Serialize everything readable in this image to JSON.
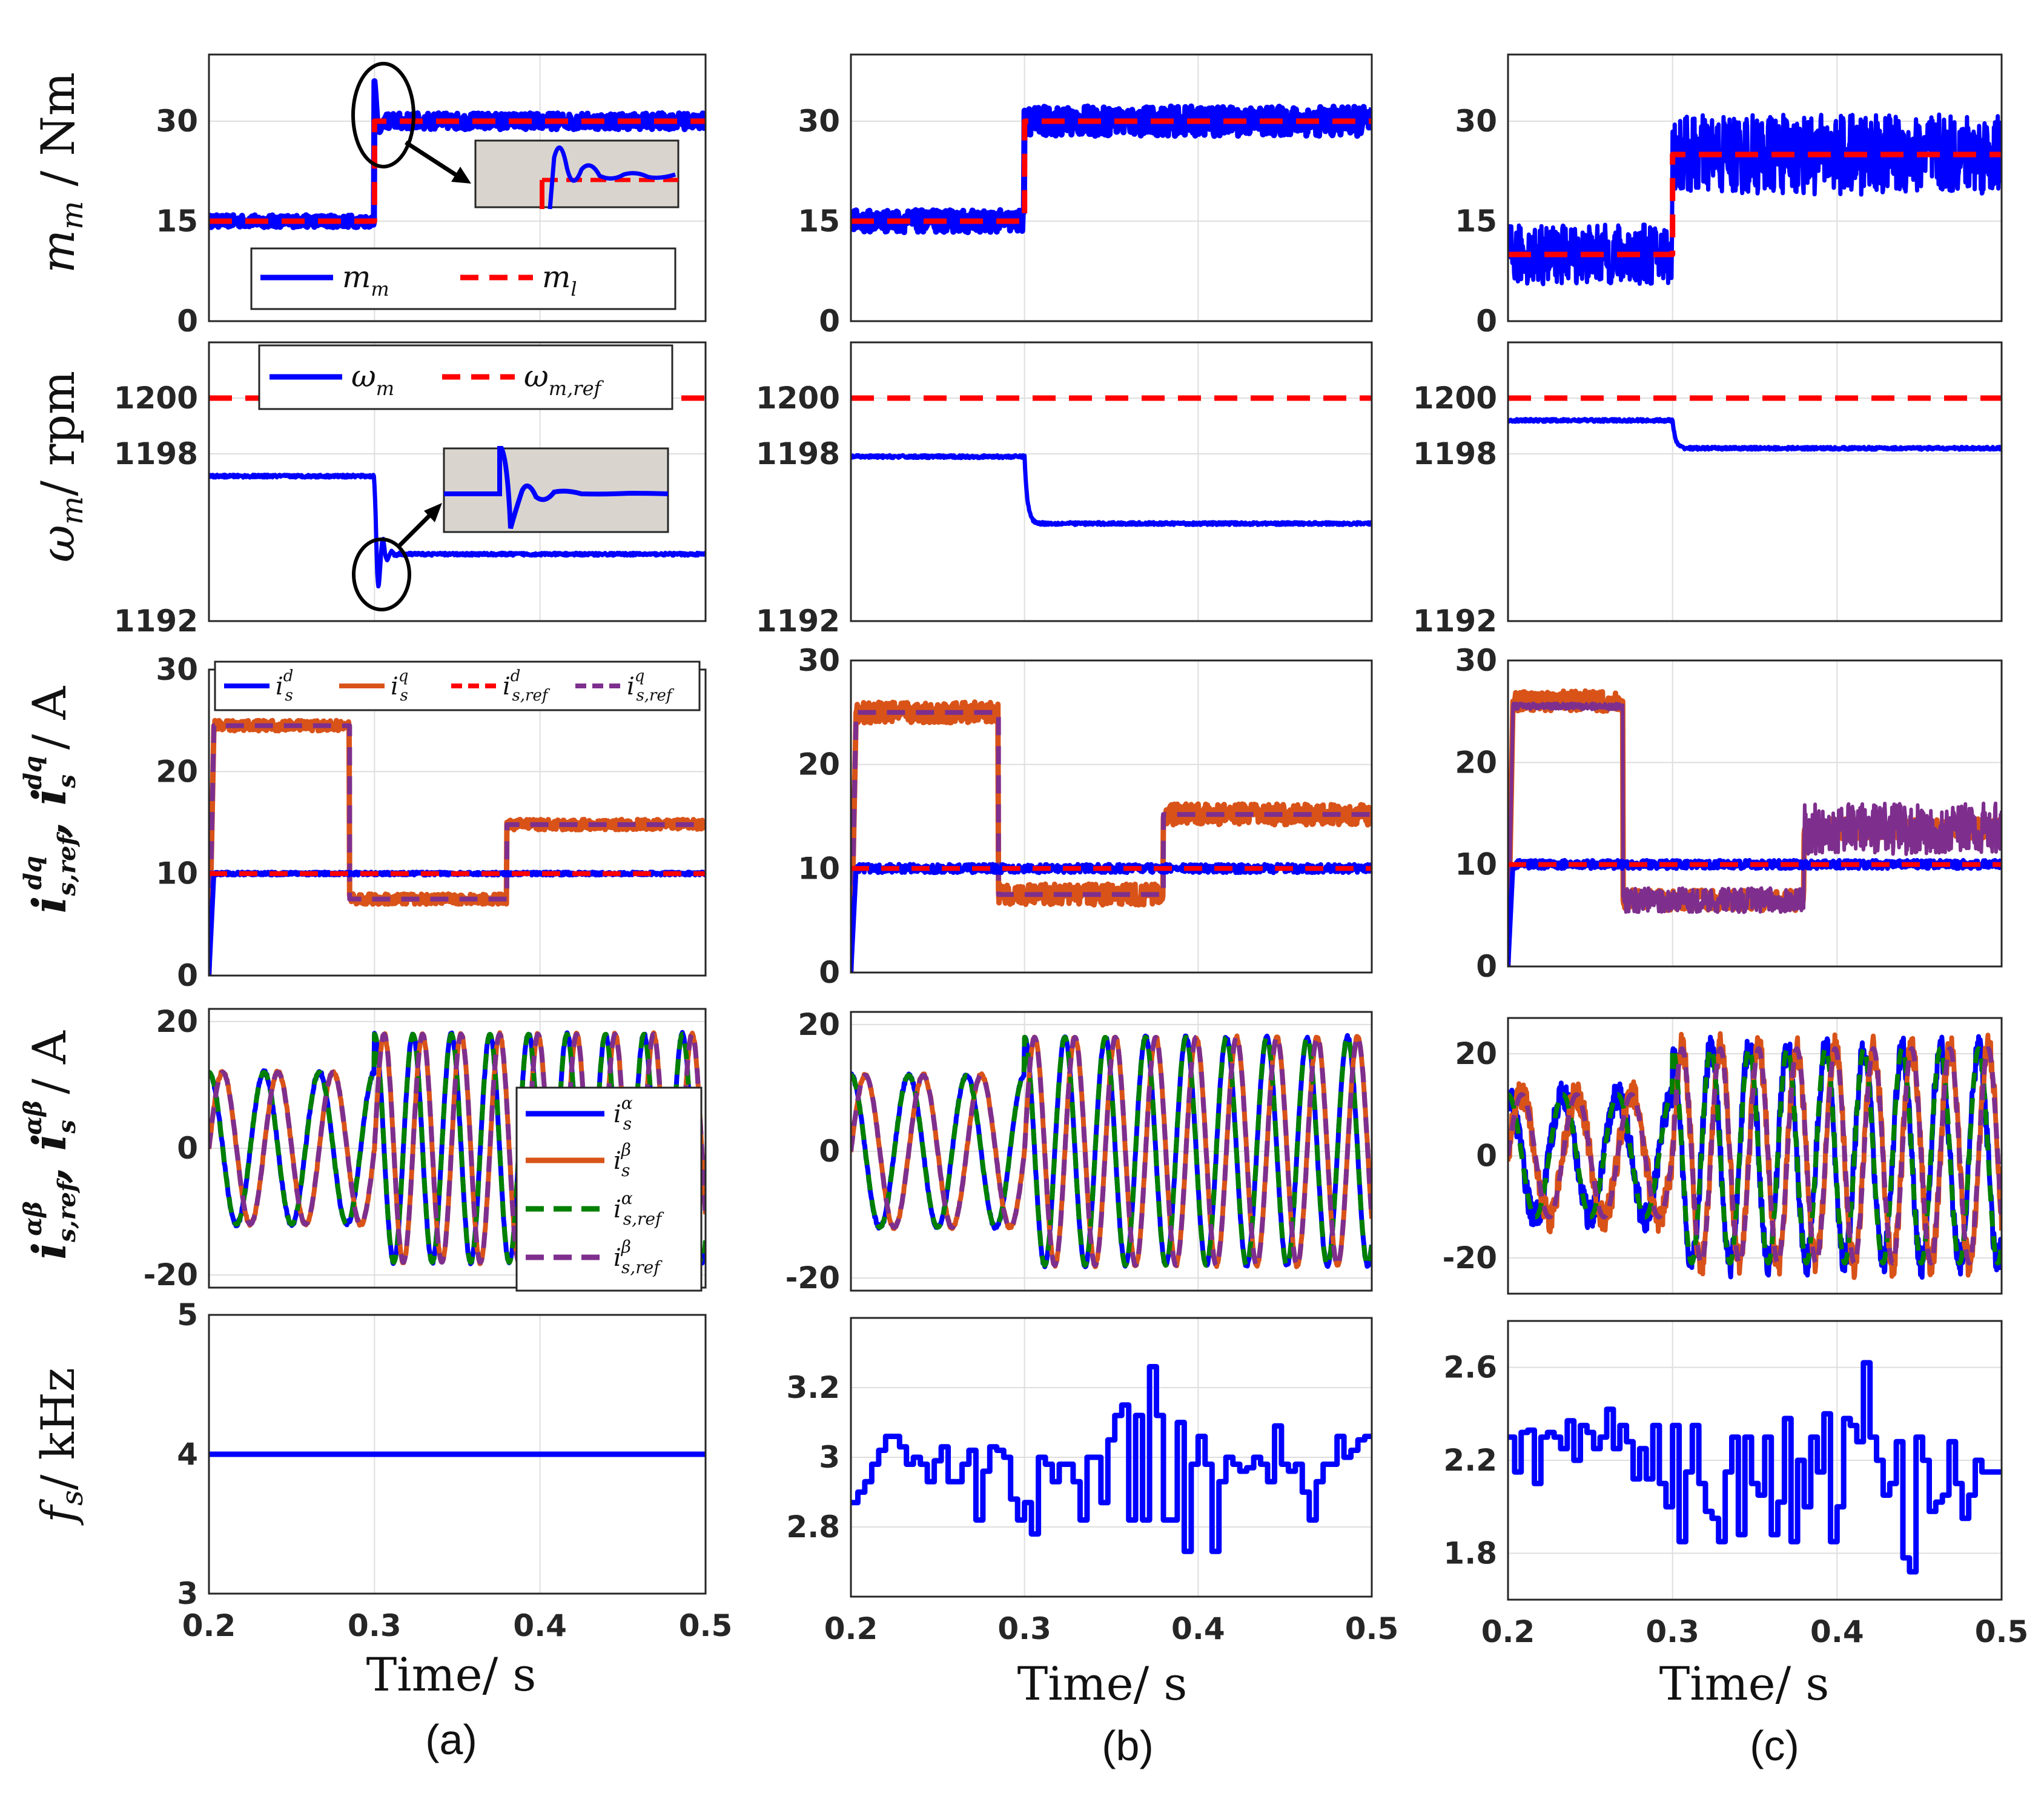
{
  "colors": {
    "blue": "#0000ff",
    "orange": "#d95319",
    "red": "#ff0000",
    "green": "#008000",
    "purple": "#7e2f8e",
    "inset": "#d9d5ce"
  },
  "row_labels": {
    "torque": "m_m / Nm",
    "speed": "ω_m / rpm",
    "idq": "i^dq_s,ref , i^dq_s / A",
    "iab": "i^αβ_s,ref , i^αβ_s / A",
    "freq": "f_s / kHz"
  },
  "x_axis": {
    "label": "Time/ s",
    "ticks": [
      "0.2",
      "0.3",
      "0.4",
      "0.5"
    ],
    "range": [
      0.2,
      0.5
    ]
  },
  "panel_labels": [
    "(a)",
    "(b)",
    "(c)"
  ],
  "legends": {
    "torque": [
      "m_m",
      "m_l"
    ],
    "speed": [
      "ω_m",
      "ω_m,ref"
    ],
    "idq": [
      "i^d_s",
      "i^q_s",
      "i^d_s,ref",
      "i^q_s,ref"
    ],
    "iab": [
      "i^α_s",
      "i^β_s",
      "i^α_s,ref",
      "i^β_s,ref"
    ]
  },
  "chart_data": [
    {
      "type": "line",
      "column": "a",
      "row": "torque",
      "ylim": [
        0,
        40
      ],
      "yticks": [
        "0",
        "15",
        "30"
      ],
      "series": [
        {
          "name": "m_m",
          "step_time": 0.3,
          "before": 15,
          "after": 30,
          "band": 1.2
        },
        {
          "name": "m_l",
          "step_time": 0.3,
          "before": 15,
          "after": 30
        }
      ]
    },
    {
      "type": "line",
      "column": "b",
      "row": "torque",
      "ylim": [
        0,
        40
      ],
      "yticks": [
        "0",
        "15",
        "30"
      ],
      "series": [
        {
          "name": "m_m",
          "step_time": 0.3,
          "before": 15,
          "after": 30,
          "band": 2.2
        },
        {
          "name": "m_l",
          "step_time": 0.3,
          "before": 15,
          "after": 30
        }
      ]
    },
    {
      "type": "line",
      "column": "c",
      "row": "torque",
      "ylim": [
        0,
        40
      ],
      "yticks": [
        "0",
        "15",
        "30"
      ],
      "series": [
        {
          "name": "m_m",
          "step_time": 0.3,
          "before": 10,
          "after": 25,
          "band": 6
        },
        {
          "name": "m_l",
          "step_time": 0.3,
          "before": 10,
          "after": 25
        }
      ]
    },
    {
      "type": "line",
      "column": "a",
      "row": "speed",
      "ylim": [
        1192,
        1202
      ],
      "yticks": [
        "1192",
        "1198",
        "1200"
      ],
      "series": [
        {
          "name": "ω_m",
          "step_time": 0.3,
          "before": 1197.2,
          "after": 1194.4
        },
        {
          "name": "ω_m,ref",
          "value": 1200
        }
      ]
    },
    {
      "type": "line",
      "column": "b",
      "row": "speed",
      "ylim": [
        1192,
        1202
      ],
      "yticks": [
        "1192",
        "1198",
        "1200"
      ],
      "series": [
        {
          "name": "ω_m",
          "step_time": 0.3,
          "before": 1197.9,
          "after": 1195.5
        },
        {
          "name": "ω_m,ref",
          "value": 1200
        }
      ]
    },
    {
      "type": "line",
      "column": "c",
      "row": "speed",
      "ylim": [
        1192,
        1202
      ],
      "yticks": [
        "1192",
        "1198",
        "1200"
      ],
      "series": [
        {
          "name": "ω_m",
          "step_time": 0.3,
          "before": 1199.2,
          "after": 1198.2
        },
        {
          "name": "ω_m,ref",
          "value": 1200
        }
      ]
    },
    {
      "type": "line",
      "column": "a",
      "row": "idq",
      "ylim": [
        0,
        30
      ],
      "yticks": [
        "0",
        "10",
        "20",
        "30"
      ],
      "series": [
        {
          "name": "i^d_s",
          "value": 10
        },
        {
          "name": "i^q_s",
          "steps": [
            [
              0.2,
              24.5
            ],
            [
              0.285,
              7.5
            ],
            [
              0.38,
              14.8
            ]
          ]
        },
        {
          "name": "i^d_s,ref",
          "value": 10
        },
        {
          "name": "i^q_s,ref",
          "steps": [
            [
              0.2,
              24.5
            ],
            [
              0.285,
              7.5
            ],
            [
              0.38,
              14.8
            ]
          ]
        }
      ]
    },
    {
      "type": "line",
      "column": "b",
      "row": "idq",
      "ylim": [
        0,
        30
      ],
      "yticks": [
        "0",
        "10",
        "20",
        "30"
      ],
      "series": [
        {
          "name": "i^d_s",
          "value": 10
        },
        {
          "name": "i^q_s",
          "steps": [
            [
              0.2,
              25
            ],
            [
              0.285,
              7.5
            ],
            [
              0.38,
              15.2
            ]
          ]
        },
        {
          "name": "i^d_s,ref",
          "value": 10
        },
        {
          "name": "i^q_s,ref",
          "steps": [
            [
              0.2,
              25
            ],
            [
              0.285,
              7.5
            ],
            [
              0.38,
              15.2
            ]
          ]
        }
      ]
    },
    {
      "type": "line",
      "column": "c",
      "row": "idq",
      "ylim": [
        0,
        30
      ],
      "yticks": [
        "0",
        "10",
        "20",
        "30"
      ],
      "series": [
        {
          "name": "i^d_s",
          "value": 10
        },
        {
          "name": "i^q_s",
          "steps": [
            [
              0.2,
              26
            ],
            [
              0.27,
              6.5
            ],
            [
              0.38,
              13.5
            ]
          ]
        },
        {
          "name": "i^d_s,ref",
          "value": 10
        },
        {
          "name": "i^q_s,ref",
          "steps": [
            [
              0.2,
              25.5
            ],
            [
              0.27,
              6.5
            ],
            [
              0.38,
              13.5
            ]
          ]
        }
      ]
    },
    {
      "type": "line",
      "column": "a",
      "row": "iab",
      "ylim": [
        -22,
        22
      ],
      "yticks": [
        "-20",
        "0",
        "20"
      ],
      "series": [
        {
          "name": "i^α_s",
          "amp_before": 12,
          "amp_after": 18,
          "step_time": 0.3
        },
        {
          "name": "i^β_s",
          "amp_before": 12,
          "amp_after": 18,
          "step_time": 0.3
        },
        {
          "name": "i^α_s,ref",
          "amp_before": 12,
          "amp_after": 18,
          "step_time": 0.3
        },
        {
          "name": "i^β_s,ref",
          "amp_before": 12,
          "amp_after": 18,
          "step_time": 0.3
        }
      ]
    },
    {
      "type": "line",
      "column": "b",
      "row": "iab",
      "ylim": [
        -22,
        22
      ],
      "yticks": [
        "-20",
        "0",
        "20"
      ],
      "series": [
        {
          "name": "i^α_s",
          "amp_before": 12,
          "amp_after": 18,
          "step_time": 0.3
        },
        {
          "name": "i^β_s",
          "amp_before": 12,
          "amp_after": 18,
          "step_time": 0.3
        },
        {
          "name": "i^α_s,ref",
          "amp_before": 12,
          "amp_after": 18,
          "step_time": 0.3
        },
        {
          "name": "i^β_s,ref",
          "amp_before": 12,
          "amp_after": 18,
          "step_time": 0.3
        }
      ]
    },
    {
      "type": "line",
      "column": "c",
      "row": "iab",
      "ylim": [
        -27,
        27
      ],
      "yticks": [
        "-20",
        "0",
        "20"
      ],
      "series": [
        {
          "name": "i^α_s",
          "amp_before": 12,
          "amp_after": 21,
          "step_time": 0.3
        },
        {
          "name": "i^β_s",
          "amp_before": 12,
          "amp_after": 21,
          "step_time": 0.3
        },
        {
          "name": "i^α_s,ref",
          "amp_before": 12,
          "amp_after": 21,
          "step_time": 0.3
        },
        {
          "name": "i^β_s,ref",
          "amp_before": 12,
          "amp_after": 21,
          "step_time": 0.3
        }
      ]
    },
    {
      "type": "line",
      "column": "a",
      "row": "freq",
      "ylim": [
        3,
        5
      ],
      "yticks": [
        "3",
        "4",
        "5"
      ],
      "series": [
        {
          "name": "f_s",
          "value": 4
        }
      ]
    },
    {
      "type": "line",
      "column": "b",
      "row": "freq",
      "ylim": [
        2.6,
        3.4
      ],
      "yticks": [
        "2.8",
        "3",
        "3.2"
      ],
      "series": [
        {
          "name": "f_s",
          "x": [
            0.2,
            0.204,
            0.208,
            0.212,
            0.216,
            0.22,
            0.224,
            0.228,
            0.232,
            0.236,
            0.24,
            0.244,
            0.248,
            0.252,
            0.256,
            0.26,
            0.264,
            0.268,
            0.272,
            0.276,
            0.28,
            0.284,
            0.288,
            0.292,
            0.296,
            0.3,
            0.304,
            0.308,
            0.312,
            0.316,
            0.32,
            0.324,
            0.328,
            0.332,
            0.336,
            0.34,
            0.344,
            0.348,
            0.352,
            0.356,
            0.36,
            0.364,
            0.368,
            0.372,
            0.376,
            0.38,
            0.384,
            0.388,
            0.392,
            0.396,
            0.4,
            0.404,
            0.408,
            0.412,
            0.416,
            0.42,
            0.424,
            0.428,
            0.432,
            0.436,
            0.44,
            0.444,
            0.448,
            0.452,
            0.456,
            0.46,
            0.464,
            0.468,
            0.472,
            0.476,
            0.48,
            0.484,
            0.488,
            0.492,
            0.496
          ],
          "y": [
            2.87,
            2.9,
            2.93,
            2.98,
            3.02,
            3.06,
            3.06,
            3.03,
            2.98,
            3.0,
            2.98,
            2.93,
            2.99,
            3.03,
            2.93,
            2.93,
            2.98,
            3.02,
            2.82,
            2.96,
            3.03,
            3.02,
            3.0,
            2.88,
            2.82,
            2.87,
            2.78,
            3.0,
            2.98,
            2.93,
            2.98,
            2.98,
            2.93,
            2.82,
            3.0,
            3.0,
            2.87,
            3.05,
            3.12,
            3.15,
            2.82,
            3.12,
            2.82,
            3.26,
            3.12,
            2.82,
            2.82,
            3.1,
            2.73,
            2.98,
            3.06,
            2.98,
            2.73,
            2.93,
            3.0,
            2.98,
            2.96,
            2.97,
            3.0,
            2.98,
            2.93,
            3.09,
            2.98,
            2.96,
            2.98,
            2.9,
            2.82,
            2.93,
            2.98,
            2.98,
            3.06,
            3.0,
            3.02,
            3.05,
            3.06
          ]
        }
      ]
    },
    {
      "type": "line",
      "column": "c",
      "row": "freq",
      "ylim": [
        1.6,
        2.8
      ],
      "yticks": [
        "1.8",
        "2.2",
        "2.6"
      ],
      "series": [
        {
          "name": "f_s",
          "x": [
            0.2,
            0.204,
            0.208,
            0.212,
            0.216,
            0.22,
            0.224,
            0.228,
            0.232,
            0.236,
            0.24,
            0.244,
            0.248,
            0.252,
            0.256,
            0.26,
            0.264,
            0.268,
            0.272,
            0.276,
            0.28,
            0.284,
            0.288,
            0.292,
            0.296,
            0.3,
            0.304,
            0.308,
            0.312,
            0.316,
            0.32,
            0.324,
            0.328,
            0.332,
            0.336,
            0.34,
            0.344,
            0.348,
            0.352,
            0.356,
            0.36,
            0.364,
            0.368,
            0.372,
            0.376,
            0.38,
            0.384,
            0.388,
            0.392,
            0.396,
            0.4,
            0.404,
            0.408,
            0.412,
            0.416,
            0.42,
            0.424,
            0.428,
            0.432,
            0.436,
            0.44,
            0.444,
            0.448,
            0.452,
            0.456,
            0.46,
            0.464,
            0.468,
            0.472,
            0.476,
            0.48,
            0.484,
            0.488,
            0.492,
            0.496
          ],
          "y": [
            2.3,
            2.15,
            2.32,
            2.33,
            2.1,
            2.3,
            2.32,
            2.3,
            2.25,
            2.37,
            2.2,
            2.35,
            2.32,
            2.25,
            2.3,
            2.42,
            2.25,
            2.35,
            2.28,
            2.12,
            2.25,
            2.12,
            2.35,
            2.1,
            2.0,
            2.35,
            1.85,
            2.15,
            2.35,
            2.1,
            1.98,
            1.95,
            1.85,
            2.15,
            2.3,
            1.88,
            2.3,
            2.1,
            2.05,
            2.3,
            1.88,
            2.02,
            2.38,
            1.85,
            2.2,
            2.0,
            2.3,
            2.15,
            2.4,
            1.85,
            2.0,
            2.38,
            2.35,
            2.28,
            2.62,
            2.3,
            2.2,
            2.05,
            2.1,
            2.28,
            1.78,
            1.72,
            2.3,
            2.2,
            1.98,
            2.02,
            2.05,
            2.28,
            2.1,
            1.95,
            2.05,
            2.2,
            2.15,
            2.15,
            2.15
          ]
        }
      ]
    }
  ]
}
